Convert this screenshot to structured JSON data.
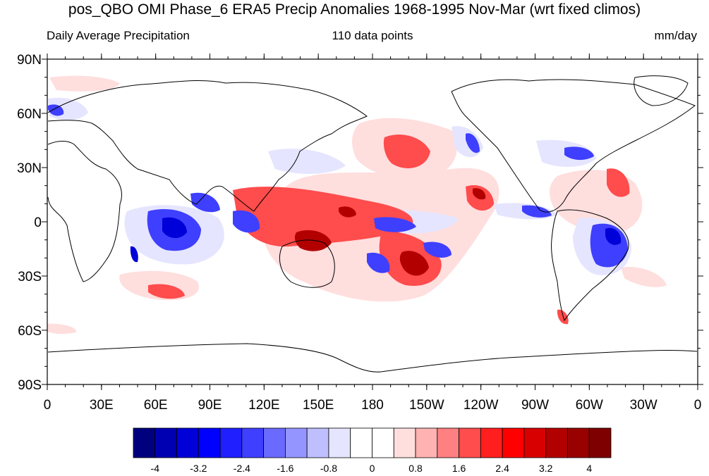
{
  "title": "pos_QBO OMI Phase_6 ERA5 Precip Anomalies 1968-1995 Nov-Mar (wrt fixed climos)",
  "subtitle_left": "Daily Average Precipitation",
  "subtitle_center": "110 data points",
  "subtitle_right": "mm/day",
  "lat_ticks": [
    "90N",
    "60N",
    "30N",
    "0",
    "30S",
    "60S",
    "90S"
  ],
  "lon_ticks": [
    "0",
    "30E",
    "60E",
    "90E",
    "120E",
    "150E",
    "180",
    "150W",
    "120W",
    "90W",
    "60W",
    "30W",
    "0"
  ],
  "colorbar": {
    "colors": [
      "#00007f",
      "#0000b2",
      "#0000d8",
      "#0000ff",
      "#1f1fff",
      "#3f3fff",
      "#6a6aff",
      "#9595ff",
      "#bfbfff",
      "#e5e5ff",
      "#ffffff",
      "#ffffff",
      "#ffdede",
      "#ffb2b2",
      "#ff8080",
      "#ff4c4c",
      "#ff1f1f",
      "#ff0000",
      "#d80000",
      "#b20000",
      "#990000",
      "#7f0000"
    ],
    "labels": [
      "-4",
      "-3.2",
      "-2.4",
      "-1.6",
      "-0.8",
      "0",
      "0.8",
      "1.6",
      "2.4",
      "3.2",
      "4"
    ]
  },
  "map_colors": {
    "land_outline": "#000000",
    "light_red": "#ffdede",
    "red": "#ff4c4c",
    "dark_red": "#b20000",
    "light_blue": "#e5e5ff",
    "blue": "#3f3fff",
    "dark_blue": "#0000d8"
  }
}
